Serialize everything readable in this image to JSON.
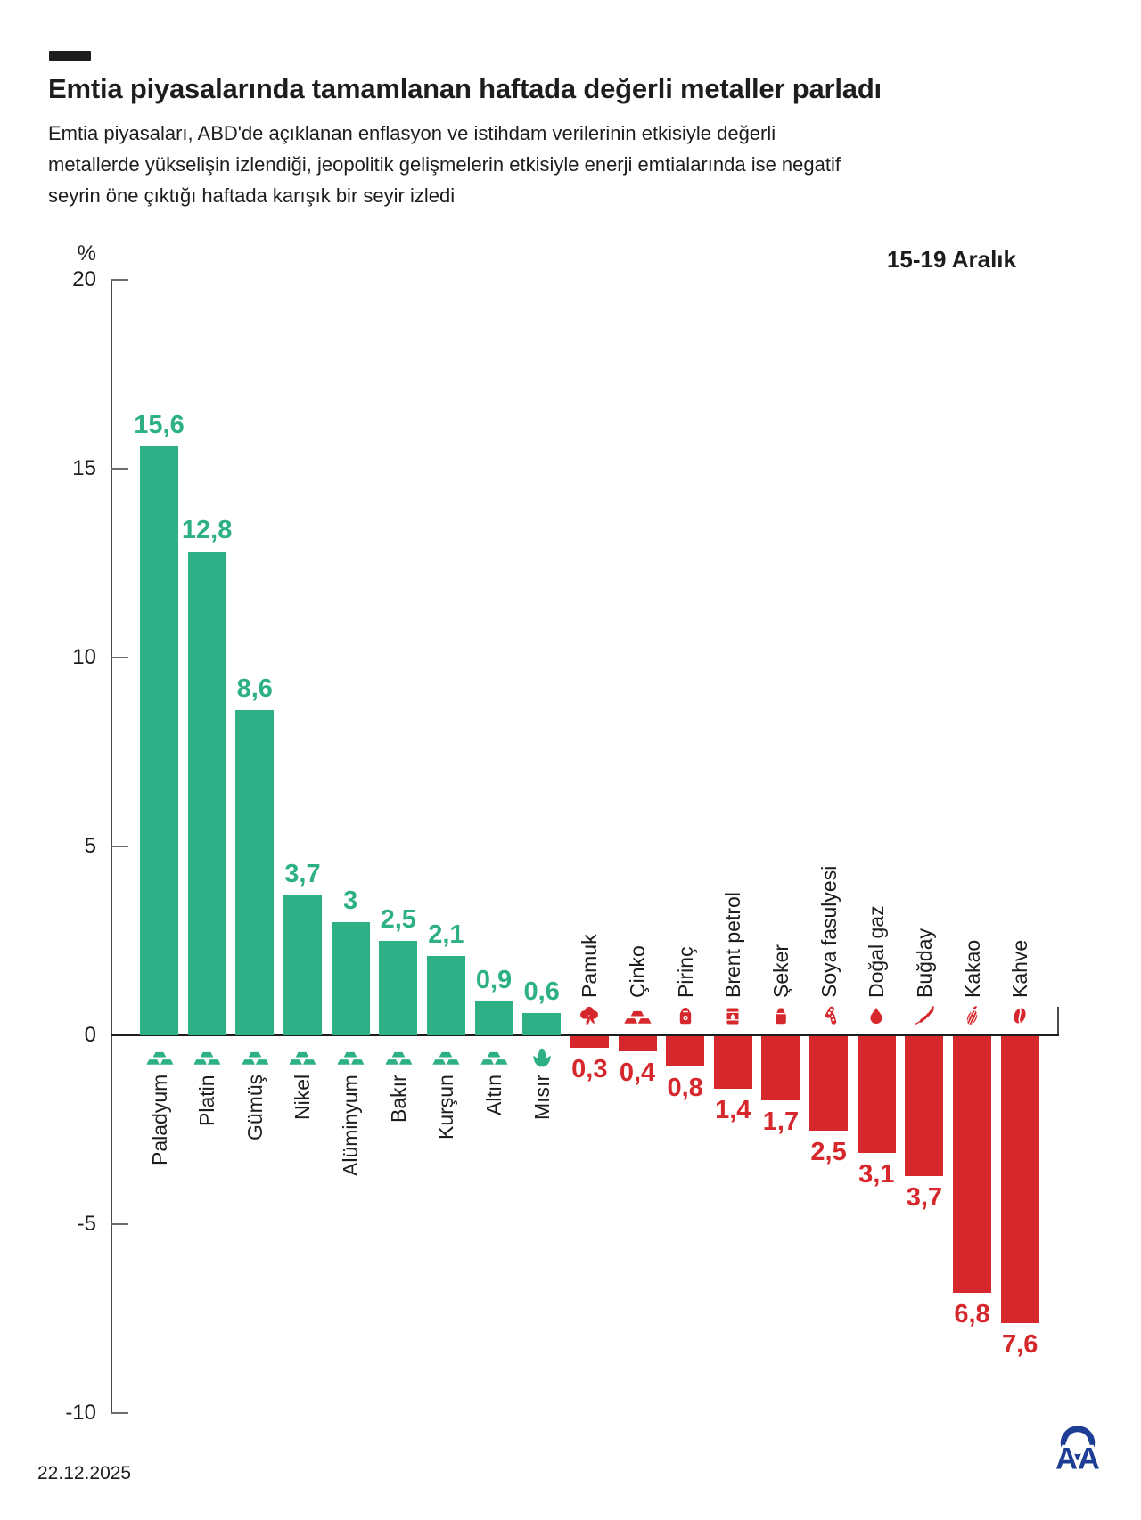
{
  "header": {
    "title": "Emtia piyasalarında tamamlanan haftada değerli metaller parladı",
    "subtitle": "Emtia piyasaları, ABD'de açıklanan enflasyon ve istihdam verilerinin etkisiyle değerli metallerde yükselişin izlendiği, jeopolitik gelişmelerin etkisiyle enerji emtialarında ise negatif seyrin öne çıktığı haftada karışık bir seyir izledi"
  },
  "chart_data": {
    "type": "bar",
    "title": "15-19 Aralık",
    "xlabel": "",
    "ylabel": "%",
    "ylim": [
      -10,
      20
    ],
    "y_ticks": [
      20,
      15,
      10,
      5,
      0,
      -5,
      -10
    ],
    "grid": false,
    "legend": false,
    "positive_color": "#2eb086",
    "negative_color": "#d6282c",
    "categories": [
      "Paladyum",
      "Platin",
      "Gümüş",
      "Nikel",
      "Alüminyum",
      "Bakır",
      "Kurşun",
      "Altın",
      "Mısır",
      "Pamuk",
      "Çinko",
      "Pirinç",
      "Brent petrol",
      "Şeker",
      "Soya fasulyesi",
      "Doğal gaz",
      "Buğday",
      "Kakao",
      "Kahve"
    ],
    "values": [
      15.6,
      12.8,
      8.6,
      3.7,
      3,
      2.5,
      2.1,
      0.9,
      0.6,
      -0.3,
      -0.4,
      -0.8,
      -1.4,
      -1.7,
      -2.5,
      -3.1,
      -3.7,
      -6.8,
      -7.6
    ],
    "display_values": [
      "15,6",
      "12,8",
      "8,6",
      "3,7",
      "3",
      "2,5",
      "2,1",
      "0,9",
      "0,6",
      "0,3",
      "0,4",
      "0,8",
      "1,4",
      "1,7",
      "2,5",
      "3,1",
      "3,7",
      "6,8",
      "7,6"
    ],
    "icons": [
      "ingots",
      "ingots",
      "ingots",
      "ingots",
      "ingots",
      "ingots",
      "ingots",
      "ingots",
      "corn",
      "cotton",
      "ingots",
      "rice-sack",
      "oil-barrel",
      "sugar-sack",
      "soybean",
      "flame",
      "wheat",
      "cocoa",
      "coffee-bean"
    ]
  },
  "footer": {
    "date": "22.12.2025",
    "agency_logo": "AA"
  }
}
